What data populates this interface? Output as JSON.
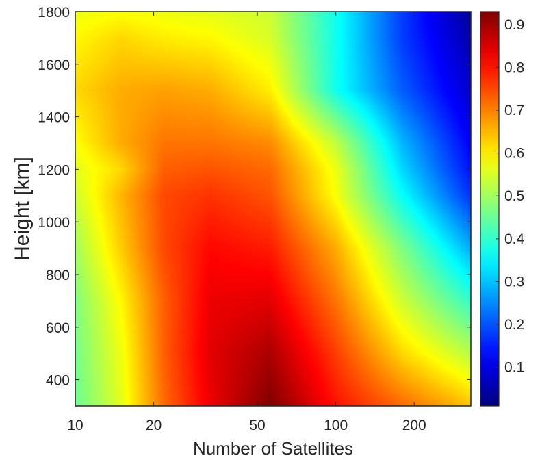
{
  "chart_data": {
    "type": "heatmap",
    "title": "",
    "xlabel": "Number of Satellites",
    "ylabel": "Height [km]",
    "x_scale": "log",
    "xlim": [
      10,
      330
    ],
    "ylim": [
      300,
      1800
    ],
    "x_ticks": [
      10,
      20,
      50,
      100,
      200
    ],
    "x_tick_labels": [
      "10",
      "20",
      "50",
      "100",
      "200"
    ],
    "y_ticks": [
      400,
      600,
      800,
      1000,
      1200,
      1400,
      1600,
      1800
    ],
    "y_tick_labels": [
      "400",
      "600",
      "800",
      "1000",
      "1200",
      "1400",
      "1600",
      "1800"
    ],
    "colormap": "jet",
    "clim": [
      0.01,
      0.93
    ],
    "colorbar_ticks": [
      0.1,
      0.2,
      0.3,
      0.4,
      0.5,
      0.6,
      0.7,
      0.8,
      0.9
    ],
    "colorbar_tick_labels": [
      "0.1",
      "0.2",
      "0.3",
      "0.4",
      "0.5",
      "0.6",
      "0.7",
      "0.8",
      "0.9"
    ],
    "grid": false,
    "x": [
      10,
      15,
      22,
      33,
      56,
      100,
      180,
      330
    ],
    "y": [
      300,
      500,
      700,
      900,
      1100,
      1200,
      1300,
      1500,
      1700,
      1800
    ],
    "z": [
      [
        0.45,
        0.56,
        0.72,
        0.83,
        0.93,
        0.8,
        0.72,
        0.64
      ],
      [
        0.46,
        0.57,
        0.73,
        0.84,
        0.89,
        0.76,
        0.62,
        0.52
      ],
      [
        0.47,
        0.59,
        0.73,
        0.83,
        0.84,
        0.71,
        0.54,
        0.4
      ],
      [
        0.5,
        0.63,
        0.75,
        0.81,
        0.79,
        0.66,
        0.47,
        0.28
      ],
      [
        0.54,
        0.65,
        0.75,
        0.77,
        0.74,
        0.58,
        0.36,
        0.17
      ],
      [
        0.56,
        0.62,
        0.73,
        0.74,
        0.72,
        0.57,
        0.32,
        0.14
      ],
      [
        0.58,
        0.66,
        0.71,
        0.71,
        0.69,
        0.53,
        0.29,
        0.12
      ],
      [
        0.62,
        0.66,
        0.67,
        0.66,
        0.6,
        0.37,
        0.21,
        0.08
      ],
      [
        0.59,
        0.62,
        0.6,
        0.59,
        0.55,
        0.37,
        0.18,
        0.05
      ],
      [
        0.57,
        0.58,
        0.57,
        0.56,
        0.54,
        0.37,
        0.18,
        0.03
      ]
    ]
  }
}
